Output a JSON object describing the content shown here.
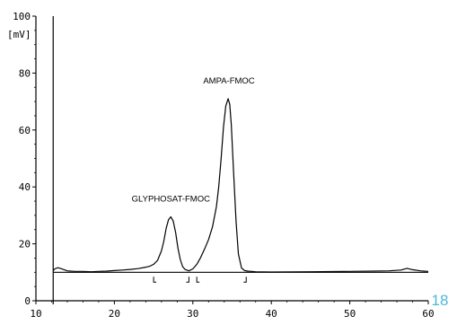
{
  "chart_data": {
    "type": "line",
    "y_unit": "[mV]",
    "xlim": [
      10,
      60
    ],
    "ylim": [
      0,
      100
    ],
    "x_ticks": [
      "10",
      "20",
      "30",
      "40",
      "50",
      "60"
    ],
    "y_ticks": [
      "0",
      "20",
      "40",
      "60",
      "80",
      "100"
    ],
    "baseline_y": 10,
    "injection_x": 12.2,
    "grid": false,
    "annotations": [
      {
        "text": "GLYPHOSAT-FMOC",
        "x": 27.2,
        "y": 29.5
      },
      {
        "text": "AMPA-FMOC",
        "x": 34.6,
        "y": 71
      }
    ],
    "integration_marks": [
      25.0,
      29.5,
      30.5,
      36.8
    ],
    "series": [
      {
        "x": [
          12.2,
          12.4,
          12.8,
          13.2,
          13.6,
          14,
          15,
          16,
          17,
          18,
          19,
          20,
          21,
          22,
          23,
          24,
          24.5,
          25,
          25.5,
          26,
          26.3,
          26.6,
          26.9,
          27.2,
          27.5,
          27.8,
          28.1,
          28.4,
          28.7,
          29,
          29.5,
          30,
          30.5,
          31,
          31.5,
          32,
          32.5,
          33,
          33.3,
          33.6,
          33.9,
          34.2,
          34.5,
          34.7,
          34.9,
          35.2,
          35.5,
          35.8,
          36.2,
          36.6,
          37,
          38,
          40,
          45,
          50,
          55,
          56.5,
          57.3,
          58,
          59,
          60
        ],
        "y": [
          10.6,
          11.2,
          11.6,
          11.3,
          10.9,
          10.5,
          10.3,
          10.3,
          10.2,
          10.3,
          10.4,
          10.6,
          10.8,
          11.0,
          11.3,
          11.8,
          12.1,
          12.8,
          14.2,
          17.5,
          21.0,
          25.5,
          28.5,
          29.5,
          28.0,
          24.0,
          18.5,
          14.5,
          12.0,
          11.0,
          10.5,
          11.2,
          12.8,
          15.2,
          18.2,
          21.5,
          26.0,
          33.0,
          40.0,
          50.0,
          61.0,
          68.5,
          71.0,
          69.0,
          62.0,
          45.0,
          28.0,
          16.5,
          11.5,
          10.6,
          10.4,
          10.2,
          10.1,
          10.2,
          10.3,
          10.5,
          10.8,
          11.4,
          10.9,
          10.5,
          10.3
        ]
      }
    ]
  },
  "page_badge": "18"
}
